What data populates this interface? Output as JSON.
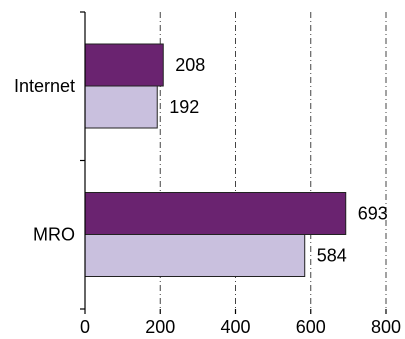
{
  "chart_data": {
    "type": "bar",
    "orientation": "horizontal",
    "title": "",
    "xlabel": "",
    "ylabel": "",
    "categories": [
      "Internet",
      "MRO"
    ],
    "series": [
      {
        "values": [
          208,
          693
        ],
        "color": "#6a2370"
      },
      {
        "values": [
          192,
          584
        ],
        "color": "#c9c0de"
      }
    ],
    "xlim": [
      0,
      800
    ],
    "x_ticks": [
      "0",
      "200",
      "400",
      "600",
      "800"
    ],
    "x_tick_values": [
      0,
      200,
      400,
      600,
      800
    ],
    "data_labels": [
      [
        "208",
        "693"
      ],
      [
        "192",
        "584"
      ]
    ],
    "grid": {
      "vertical": true,
      "style": "dash-dot",
      "color": "#444444"
    },
    "legend": "none"
  }
}
